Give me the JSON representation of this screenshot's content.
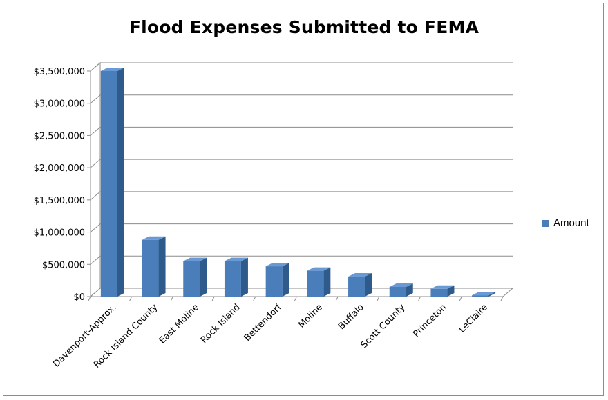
{
  "chart_data": {
    "type": "bar",
    "title": "Flood Expenses Submitted to FEMA",
    "categories": [
      "Davenport-Approx.",
      "Rock Island County",
      "East Moline",
      "Rock Island",
      "Bettendorf",
      "Moline",
      "Buffalo",
      "Scott County",
      "Princeton",
      "LeClaire"
    ],
    "series": [
      {
        "name": "Amount",
        "values": [
          3500000,
          880000,
          550000,
          550000,
          470000,
          400000,
          310000,
          150000,
          120000,
          20000
        ]
      }
    ],
    "ylim": [
      0,
      3500000
    ],
    "yticks": [
      "$0",
      "$500,000",
      "$1,000,000",
      "$1,500,000",
      "$2,000,000",
      "$2,500,000",
      "$3,000,000",
      "$3,500,000"
    ],
    "grid": true,
    "legend_position": "right",
    "bar_style": "3d-column",
    "colors": {
      "bar_front": "#4a7ebb",
      "bar_side": "#2f5a8c",
      "bar_top": "#6a9ad6",
      "grid": "#8c8c8c"
    }
  }
}
